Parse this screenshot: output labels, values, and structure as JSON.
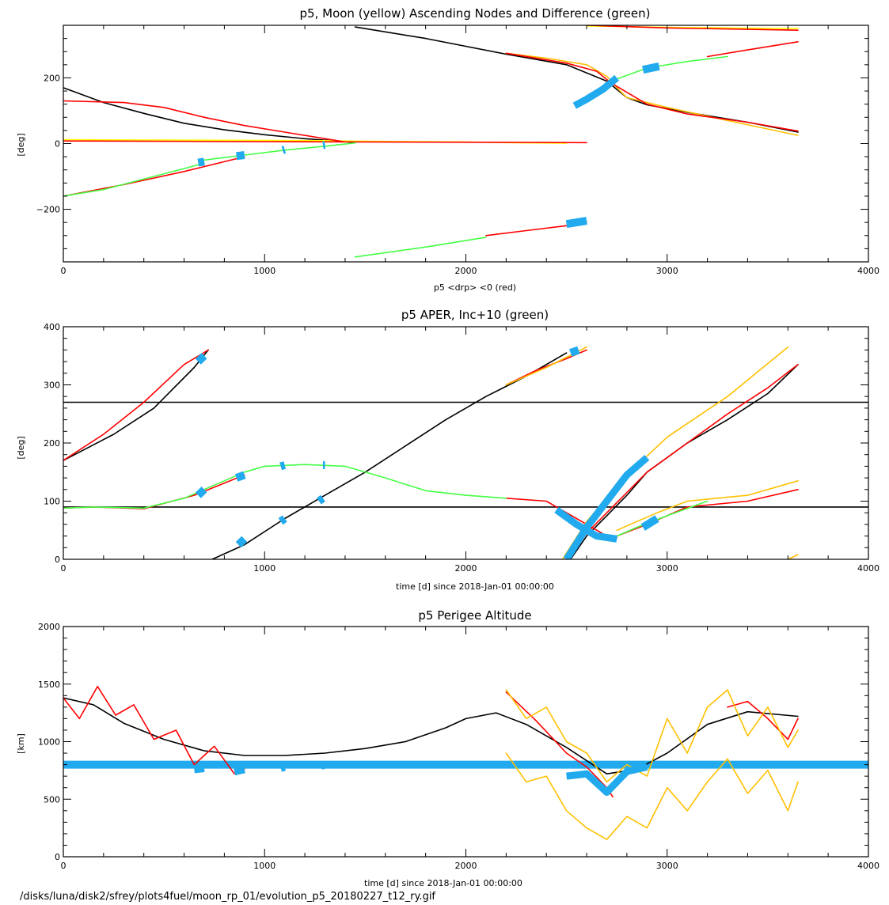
{
  "figure": {
    "footer": "/disks/luna/disk2/sfrey/plots4fuel/moon_rp_01/evolution_p5_20180227_t12_ry.gif"
  },
  "colors": {
    "black": "#000000",
    "red": "#ff0000",
    "yellow": "#ffff00",
    "green": "#44ff44",
    "orange": "#ffc000",
    "cyan": "#22aaee"
  },
  "chart_data": [
    {
      "type": "line",
      "title": "p5, Moon (yellow) Ascending Nodes and Difference (green)",
      "xlabel": "p5 <drp> <0 (red)",
      "ylabel": "[deg]",
      "xlim": [
        0,
        4000
      ],
      "ylim": [
        -360,
        360
      ],
      "xticks": [
        0,
        1000,
        2000,
        3000,
        4000
      ],
      "yticks": [
        -200,
        0,
        200
      ],
      "series": [
        {
          "color": "black",
          "x": [
            0,
            200,
            400,
            600,
            800,
            1000,
            1200,
            1400,
            1450
          ],
          "y": [
            170,
            125,
            92,
            62,
            42,
            27,
            15,
            6,
            2
          ]
        },
        {
          "color": "black",
          "x": [
            1450,
            1800,
            2200,
            2500,
            2700,
            2750,
            2800,
            2900,
            3100,
            3400,
            3650
          ],
          "y": [
            355,
            320,
            272,
            240,
            190,
            165,
            140,
            118,
            95,
            65,
            35
          ]
        },
        {
          "color": "yellow",
          "x": [
            0,
            300,
            800,
            1300,
            1500,
            2000,
            2200,
            2500
          ],
          "y": [
            12,
            11,
            10,
            9,
            7,
            5,
            3,
            1
          ]
        },
        {
          "color": "yellow",
          "x": [
            2600,
            2800,
            3000,
            3300,
            3650
          ],
          "y": [
            358,
            356,
            354,
            352,
            350
          ]
        },
        {
          "color": "orange",
          "x": [
            2200,
            2400,
            2600,
            2700,
            2750,
            2800,
            3000,
            3300,
            3650
          ],
          "y": [
            275,
            260,
            240,
            205,
            170,
            140,
            110,
            70,
            25
          ]
        },
        {
          "color": "red",
          "x": [
            0,
            300,
            500,
            700,
            900,
            1100,
            1400
          ],
          "y": [
            130,
            125,
            110,
            80,
            55,
            35,
            5
          ]
        },
        {
          "color": "red",
          "x": [
            0,
            2600
          ],
          "y": [
            8,
            3
          ]
        },
        {
          "color": "red",
          "x": [
            2200,
            2500,
            2650,
            2720
          ],
          "y": [
            275,
            245,
            220,
            185
          ]
        },
        {
          "color": "red",
          "x": [
            2720,
            2900,
            3100,
            3400,
            3650
          ],
          "y": [
            185,
            120,
            90,
            65,
            38
          ]
        },
        {
          "color": "red",
          "x": [
            2550,
            2650,
            2720
          ],
          "y": [
            125,
            155,
            190
          ]
        },
        {
          "color": "red",
          "x": [
            3200,
            3400,
            3650
          ],
          "y": [
            265,
            285,
            310
          ]
        },
        {
          "color": "red",
          "x": [
            2600,
            3000,
            3650
          ],
          "y": [
            360,
            352,
            345
          ]
        },
        {
          "color": "red",
          "x": [
            0,
            300,
            600,
            900
          ],
          "y": [
            -160,
            -125,
            -85,
            -40
          ]
        },
        {
          "color": "red",
          "x": [
            2100,
            2300,
            2500,
            2600
          ],
          "y": [
            -280,
            -265,
            -250,
            -240
          ]
        },
        {
          "color": "green",
          "x": [
            0,
            200,
            450,
            700
          ],
          "y": [
            -160,
            -140,
            -100,
            -60
          ]
        },
        {
          "color": "green",
          "x": [
            700,
            900,
            1100,
            1300,
            1450
          ],
          "y": [
            -50,
            -35,
            -20,
            -8,
            2
          ]
        },
        {
          "color": "green",
          "x": [
            1450,
            1800,
            2100
          ],
          "y": [
            -345,
            -315,
            -285
          ]
        },
        {
          "color": "green",
          "x": [
            2720,
            2900,
            3100,
            3300
          ],
          "y": [
            190,
            230,
            250,
            265
          ]
        },
        {
          "color": "cyan",
          "x": [
            670,
            700
          ],
          "y": [
            -58,
            -55
          ]
        },
        {
          "color": "cyan",
          "x": [
            860,
            900
          ],
          "y": [
            -38,
            -35
          ]
        },
        {
          "color": "cyan",
          "x": [
            1090,
            1100
          ],
          "y": [
            -20,
            -18
          ]
        },
        {
          "color": "cyan",
          "x": [
            1290,
            1300
          ],
          "y": [
            -5,
            -4
          ]
        },
        {
          "color": "cyan",
          "x": [
            2500,
            2600
          ],
          "y": [
            -245,
            -235
          ]
        },
        {
          "color": "cyan",
          "x": [
            2540,
            2600,
            2680,
            2750
          ],
          "y": [
            115,
            135,
            165,
            200
          ]
        },
        {
          "color": "cyan",
          "x": [
            2880,
            2960
          ],
          "y": [
            225,
            235
          ]
        }
      ]
    },
    {
      "type": "line",
      "title": "p5 APER, Inc+10 (green)",
      "xlabel": "time [d] since 2018-Jan-01 00:00:00",
      "ylabel": "[deg]",
      "xlim": [
        0,
        4000
      ],
      "ylim": [
        0,
        400
      ],
      "xticks": [
        0,
        1000,
        2000,
        3000,
        4000
      ],
      "yticks": [
        0,
        100,
        200,
        300,
        400
      ],
      "series": [
        {
          "color": "black",
          "x": [
            0,
            4000
          ],
          "y": [
            90,
            90
          ]
        },
        {
          "color": "black",
          "x": [
            0,
            4000
          ],
          "y": [
            270,
            270
          ]
        },
        {
          "color": "black",
          "x": [
            0,
            250,
            450,
            650,
            720
          ],
          "y": [
            170,
            215,
            260,
            330,
            360
          ]
        },
        {
          "color": "black",
          "x": [
            740,
            900,
            1100,
            1300,
            1500,
            1700,
            1900,
            2100,
            2300,
            2500
          ],
          "y": [
            0,
            25,
            70,
            110,
            150,
            195,
            240,
            280,
            315,
            355
          ]
        },
        {
          "color": "black",
          "x": [
            2520,
            2600,
            2700,
            2800,
            2900,
            3100,
            3300,
            3500,
            3650
          ],
          "y": [
            0,
            40,
            75,
            110,
            150,
            200,
            240,
            285,
            335
          ]
        },
        {
          "color": "red",
          "x": [
            0,
            200,
            400,
            600,
            720
          ],
          "y": [
            170,
            215,
            270,
            335,
            360
          ]
        },
        {
          "color": "red",
          "x": [
            0,
            150,
            400,
            650,
            900
          ],
          "y": [
            88,
            90,
            87,
            110,
            145
          ]
        },
        {
          "color": "red",
          "x": [
            2200,
            2350,
            2500,
            2600
          ],
          "y": [
            300,
            325,
            345,
            360
          ]
        },
        {
          "color": "red",
          "x": [
            2200,
            2400,
            2550,
            2700,
            2750
          ],
          "y": [
            105,
            100,
            70,
            40,
            37
          ]
        },
        {
          "color": "red",
          "x": [
            2500,
            2600,
            2700,
            2800,
            2900,
            3100,
            3300,
            3500,
            3650
          ],
          "y": [
            0,
            45,
            80,
            115,
            150,
            200,
            250,
            295,
            335
          ]
        },
        {
          "color": "red",
          "x": [
            2750,
            2900,
            3100,
            3400,
            3650
          ],
          "y": [
            40,
            60,
            90,
            100,
            120
          ]
        },
        {
          "color": "orange",
          "x": [
            2200,
            2400,
            2600
          ],
          "y": [
            300,
            330,
            365
          ]
        },
        {
          "color": "orange",
          "x": [
            2480,
            2600,
            2700,
            2800,
            3000,
            3300,
            3600
          ],
          "y": [
            0,
            65,
            105,
            145,
            210,
            280,
            365
          ]
        },
        {
          "color": "orange",
          "x": [
            2750,
            2950,
            3100,
            3400,
            3650
          ],
          "y": [
            50,
            80,
            100,
            110,
            135
          ]
        },
        {
          "color": "orange",
          "x": [
            3600,
            3650
          ],
          "y": [
            0,
            8
          ]
        },
        {
          "color": "green",
          "x": [
            0,
            150,
            400,
            600,
            800,
            900,
            1000,
            1200,
            1400,
            1600,
            1800,
            2000,
            2200
          ],
          "y": [
            88,
            90,
            88,
            105,
            135,
            150,
            160,
            163,
            160,
            140,
            118,
            110,
            105
          ]
        },
        {
          "color": "green",
          "x": [
            2750,
            2850,
            3000,
            3200
          ],
          "y": [
            40,
            55,
            75,
            100
          ]
        },
        {
          "color": "cyan",
          "x": [
            670,
            700
          ],
          "y": [
            340,
            350
          ]
        },
        {
          "color": "cyan",
          "x": [
            870,
            900
          ],
          "y": [
            25,
            35
          ]
        },
        {
          "color": "cyan",
          "x": [
            1080,
            1100
          ],
          "y": [
            65,
            70
          ]
        },
        {
          "color": "cyan",
          "x": [
            1270,
            1290
          ],
          "y": [
            100,
            105
          ]
        },
        {
          "color": "cyan",
          "x": [
            670,
            700
          ],
          "y": [
            110,
            120
          ]
        },
        {
          "color": "cyan",
          "x": [
            860,
            900
          ],
          "y": [
            140,
            145
          ]
        },
        {
          "color": "cyan",
          "x": [
            1080,
            1100
          ],
          "y": [
            160,
            162
          ]
        },
        {
          "color": "cyan",
          "x": [
            1290,
            1300
          ],
          "y": [
            162,
            162
          ]
        },
        {
          "color": "cyan",
          "x": [
            2520,
            2560
          ],
          "y": [
            355,
            360
          ]
        },
        {
          "color": "cyan",
          "x": [
            2500,
            2600,
            2700,
            2800,
            2900
          ],
          "y": [
            0,
            55,
            100,
            145,
            175
          ]
        },
        {
          "color": "cyan",
          "x": [
            2450,
            2550,
            2650,
            2750
          ],
          "y": [
            85,
            60,
            40,
            35
          ]
        },
        {
          "color": "cyan",
          "x": [
            2880,
            2950
          ],
          "y": [
            55,
            70
          ]
        }
      ]
    },
    {
      "type": "line",
      "title": "p5 Perigee Altitude",
      "xlabel": "time [d] since 2018-Jan-01 00:00:00",
      "ylabel": "[km]",
      "xlim": [
        0,
        4000
      ],
      "ylim": [
        0,
        2000
      ],
      "xticks": [
        0,
        1000,
        2000,
        3000,
        4000
      ],
      "yticks": [
        0,
        500,
        1000,
        1500,
        2000
      ],
      "series": [
        {
          "color": "cyan",
          "x": [
            0,
            4000
          ],
          "y": [
            800,
            800
          ]
        },
        {
          "color": "black",
          "x": [
            0,
            150,
            300,
            500,
            700,
            900,
            1100,
            1300,
            1500,
            1700,
            1900,
            2000,
            2150,
            2300,
            2500,
            2700,
            2850,
            3000,
            3200,
            3400,
            3650
          ],
          "y": [
            1380,
            1320,
            1160,
            1020,
            920,
            880,
            880,
            900,
            940,
            1000,
            1120,
            1200,
            1250,
            1150,
            950,
            720,
            760,
            900,
            1150,
            1260,
            1220
          ]
        },
        {
          "color": "red",
          "x": [
            0,
            80,
            170,
            260,
            350,
            450,
            560,
            650,
            750,
            850,
            900
          ],
          "y": [
            1380,
            1200,
            1480,
            1230,
            1320,
            1020,
            1100,
            800,
            960,
            720,
            760
          ]
        },
        {
          "color": "red",
          "x": [
            2200,
            2350,
            2500,
            2600,
            2700,
            2730
          ],
          "y": [
            1430,
            1180,
            900,
            780,
            600,
            520
          ]
        },
        {
          "color": "red",
          "x": [
            3300,
            3400,
            3500,
            3600,
            3650
          ],
          "y": [
            1300,
            1350,
            1200,
            1020,
            1200
          ]
        },
        {
          "color": "orange",
          "x": [
            2200,
            2300,
            2400,
            2500,
            2600,
            2700,
            2800,
            2900,
            3000,
            3100,
            3200,
            3300,
            3400,
            3500,
            3600,
            3650
          ],
          "y": [
            1450,
            1200,
            1300,
            1000,
            900,
            650,
            800,
            700,
            1200,
            900,
            1300,
            1450,
            1050,
            1300,
            950,
            1100
          ]
        },
        {
          "color": "orange",
          "x": [
            2200,
            2300,
            2400,
            2500,
            2600,
            2700,
            2800,
            2900,
            3000,
            3100,
            3200,
            3300,
            3400,
            3500,
            3600,
            3650
          ],
          "y": [
            900,
            650,
            700,
            400,
            250,
            150,
            350,
            250,
            600,
            400,
            650,
            850,
            550,
            750,
            400,
            650
          ]
        },
        {
          "color": "cyan",
          "x": [
            650,
            700
          ],
          "y": [
            760,
            770
          ]
        },
        {
          "color": "cyan",
          "x": [
            850,
            900
          ],
          "y": [
            740,
            760
          ]
        },
        {
          "color": "cyan",
          "x": [
            1080,
            1100
          ],
          "y": [
            770,
            780
          ]
        },
        {
          "color": "cyan",
          "x": [
            1280,
            1300
          ],
          "y": [
            790,
            800
          ]
        },
        {
          "color": "cyan",
          "x": [
            2500,
            2600,
            2700,
            2800,
            2900
          ],
          "y": [
            700,
            720,
            560,
            740,
            780
          ]
        }
      ]
    }
  ]
}
